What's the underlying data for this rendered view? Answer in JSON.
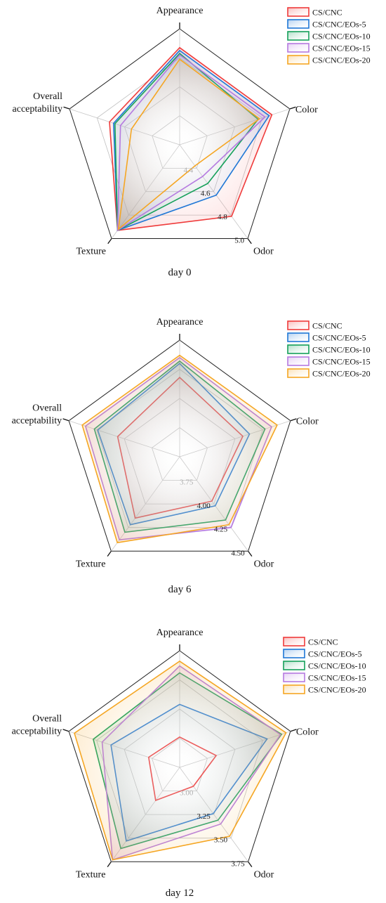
{
  "chart_data": [
    {
      "type": "radar",
      "caption": "day 0",
      "axes": [
        "Appearance",
        "Color",
        "Odor",
        "Texture",
        "Overall acceptability"
      ],
      "rmin": 4.2,
      "rmax": 5.0,
      "ticks": [
        4.4,
        4.6,
        4.8,
        5.0
      ],
      "legend_position": "top-right",
      "series": [
        {
          "name": "CS/CNC",
          "color": "#ef3b3b",
          "values": [
            4.87,
            4.87,
            4.81,
            4.93,
            4.71
          ]
        },
        {
          "name": "CS/CNC/EOs-5",
          "color": "#1f77d6",
          "values": [
            4.85,
            4.85,
            4.63,
            4.93,
            4.68
          ]
        },
        {
          "name": "CS/CNC/EOs-10",
          "color": "#15a05a",
          "values": [
            4.83,
            4.77,
            4.53,
            4.93,
            4.67
          ]
        },
        {
          "name": "CS/CNC/EOs-15",
          "color": "#b57ae0",
          "values": [
            4.82,
            4.82,
            4.47,
            4.93,
            4.63
          ]
        },
        {
          "name": "CS/CNC/EOs-20",
          "color": "#f5a623",
          "values": [
            4.79,
            4.78,
            4.38,
            4.92,
            4.55
          ]
        }
      ]
    },
    {
      "type": "radar",
      "caption": "day 6",
      "axes": [
        "Appearance",
        "Color",
        "Odor",
        "Texture",
        "Overall acceptability"
      ],
      "rmin": 3.5,
      "rmax": 4.5,
      "ticks": [
        3.75,
        4.0,
        4.25,
        4.5
      ],
      "legend_position": "top-right",
      "series": [
        {
          "name": "CS/CNC",
          "color": "#ef3b3b",
          "values": [
            4.18,
            4.07,
            3.97,
            4.15,
            4.06
          ]
        },
        {
          "name": "CS/CNC/EOs-5",
          "color": "#1f77d6",
          "values": [
            4.3,
            4.13,
            4.02,
            4.22,
            4.24
          ]
        },
        {
          "name": "CS/CNC/EOs-10",
          "color": "#15a05a",
          "values": [
            4.32,
            4.27,
            4.17,
            4.3,
            4.27
          ]
        },
        {
          "name": "CS/CNC/EOs-15",
          "color": "#b57ae0",
          "values": [
            4.35,
            4.33,
            4.25,
            4.38,
            4.35
          ]
        },
        {
          "name": "CS/CNC/EOs-20",
          "color": "#f5a623",
          "values": [
            4.37,
            4.38,
            4.22,
            4.41,
            4.38
          ]
        }
      ]
    },
    {
      "type": "radar",
      "caption": "day 12",
      "axes": [
        "Appearance",
        "Color",
        "Odor",
        "Texture",
        "Overall acceptability"
      ],
      "rmin": 2.75,
      "rmax": 3.75,
      "ticks": [
        3.0,
        3.25,
        3.5,
        3.75
      ],
      "legend_position": "top-right",
      "series": [
        {
          "name": "CS/CNC",
          "color": "#ef3b3b",
          "values": [
            3.01,
            3.08,
            2.95,
            3.1,
            3.03
          ]
        },
        {
          "name": "CS/CNC/EOs-5",
          "color": "#1f77d6",
          "values": [
            3.29,
            3.54,
            3.24,
            3.53,
            3.37
          ]
        },
        {
          "name": "CS/CNC/EOs-10",
          "color": "#15a05a",
          "values": [
            3.56,
            3.67,
            3.31,
            3.61,
            3.53
          ]
        },
        {
          "name": "CS/CNC/EOs-15",
          "color": "#b57ae0",
          "values": [
            3.62,
            3.66,
            3.35,
            3.73,
            3.45
          ]
        },
        {
          "name": "CS/CNC/EOs-20",
          "color": "#f5a623",
          "values": [
            3.66,
            3.71,
            3.48,
            3.73,
            3.7
          ]
        }
      ]
    }
  ]
}
